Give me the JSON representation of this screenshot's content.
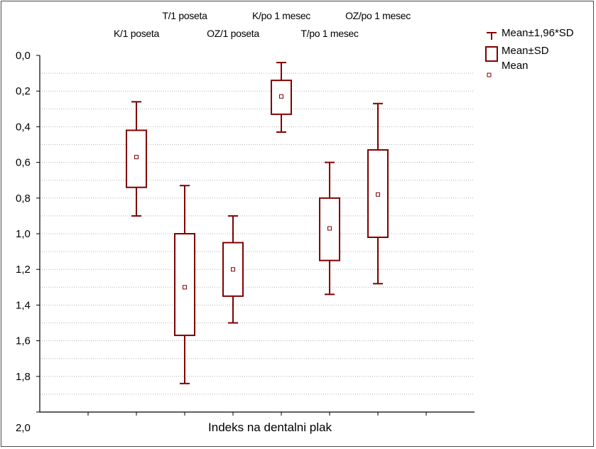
{
  "chart_data": {
    "type": "boxplot",
    "title": "",
    "xlabel": "Indeks na dentalni plak",
    "ylabel": "",
    "y_inverted": true,
    "ylim": [
      0.0,
      2.0
    ],
    "yticks": [
      "0,0",
      "0,2",
      "0,4",
      "0,6",
      "0,8",
      "1,0",
      "1,2",
      "1,4",
      "1,6",
      "1,8",
      "2,0"
    ],
    "grid": true,
    "legend_position": "top-right",
    "legend": [
      "Mean±1,96*SD",
      "Mean±SD",
      "Mean"
    ],
    "categories": [
      "K/1 poseta",
      "T/1 poseta",
      "OZ/1 poseta",
      "K/po 1 mesec",
      "T/po 1 mesec",
      "OZ/po 1 mesec"
    ],
    "groups": [
      {
        "name": "K/1 poseta",
        "mean": 0.57,
        "sd_low": 0.42,
        "sd_high": 0.74,
        "ci_low": 0.26,
        "ci_high": 0.9
      },
      {
        "name": "T/1 poseta",
        "mean": 1.3,
        "sd_low": 1.0,
        "sd_high": 1.57,
        "ci_low": 0.73,
        "ci_high": 1.84
      },
      {
        "name": "OZ/1 poseta",
        "mean": 1.2,
        "sd_low": 1.05,
        "sd_high": 1.35,
        "ci_low": 0.9,
        "ci_high": 1.5
      },
      {
        "name": "K/po 1 mesec",
        "mean": 0.23,
        "sd_low": 0.14,
        "sd_high": 0.33,
        "ci_low": 0.04,
        "ci_high": 0.43
      },
      {
        "name": "T/po 1 mesec",
        "mean": 0.97,
        "sd_low": 0.8,
        "sd_high": 1.15,
        "ci_low": 0.6,
        "ci_high": 1.34
      },
      {
        "name": "OZ/po 1 mesec",
        "mean": 0.78,
        "sd_low": 0.53,
        "sd_high": 1.02,
        "ci_low": 0.27,
        "ci_high": 1.28
      }
    ],
    "colors": {
      "series": "#800000",
      "grid": "#b4b4b4",
      "axis": "#000000"
    }
  }
}
